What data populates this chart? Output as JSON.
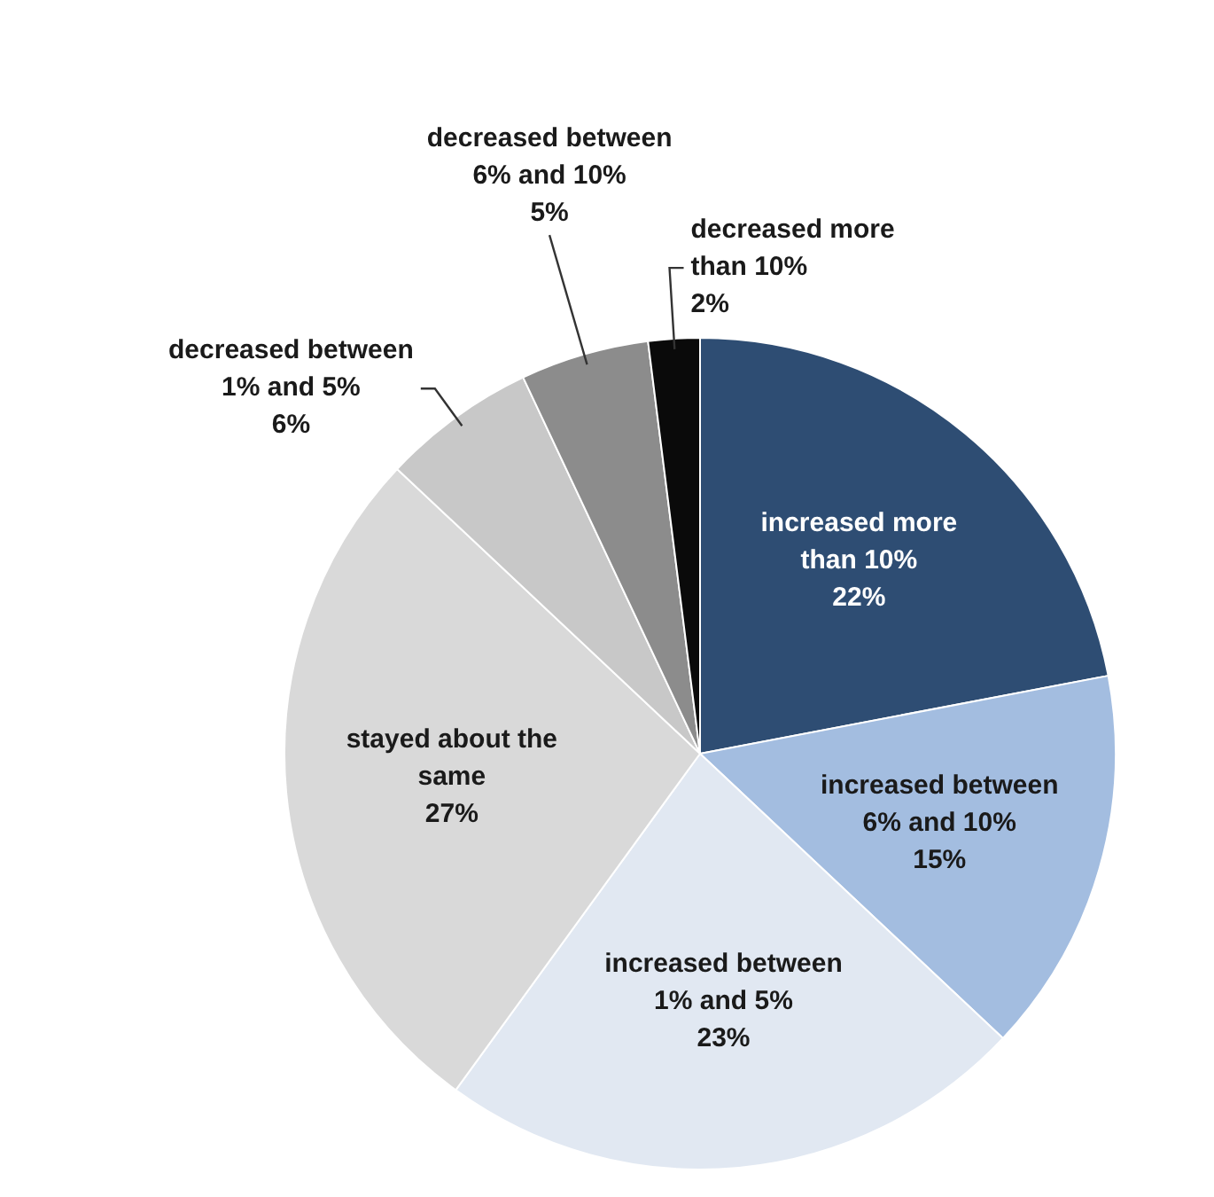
{
  "chart_data": {
    "type": "pie",
    "categories": [
      "increased more than 10%",
      "increased between 6% and 10%",
      "increased between 1% and 5%",
      "stayed about the same",
      "decreased between 1% and 5%",
      "decreased between 6% and 10%",
      "decreased more than 10%"
    ],
    "values": [
      22,
      15,
      23,
      27,
      6,
      5,
      2
    ],
    "value_labels": [
      "22%",
      "15%",
      "23%",
      "27%",
      "6%",
      "5%",
      "2%"
    ],
    "colors": [
      "#2e4d73",
      "#a3bde0",
      "#e1e8f2",
      "#d9d9d9",
      "#c8c8c8",
      "#8c8c8c",
      "#0a0a0a"
    ],
    "legend": false
  }
}
